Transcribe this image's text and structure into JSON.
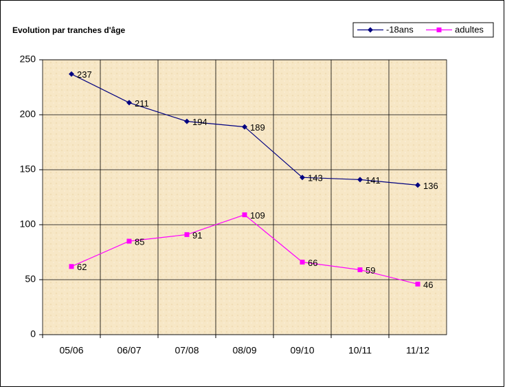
{
  "chart_data": {
    "type": "line",
    "title": "Evolution par tranches d'âge",
    "categories": [
      "05/06",
      "06/07",
      "07/08",
      "08/09",
      "09/10",
      "10/11",
      "11/12"
    ],
    "series": [
      {
        "name": "-18ans",
        "color": "#000080",
        "marker": "diamond",
        "values": [
          237,
          211,
          194,
          189,
          143,
          141,
          136
        ]
      },
      {
        "name": "adultes",
        "color": "#ff00ff",
        "marker": "square",
        "values": [
          62,
          85,
          91,
          109,
          66,
          59,
          46
        ]
      }
    ],
    "ylim": [
      0,
      250
    ],
    "yticks": [
      0,
      50,
      100,
      150,
      200,
      250
    ],
    "grid": true,
    "legend": "top-right"
  }
}
